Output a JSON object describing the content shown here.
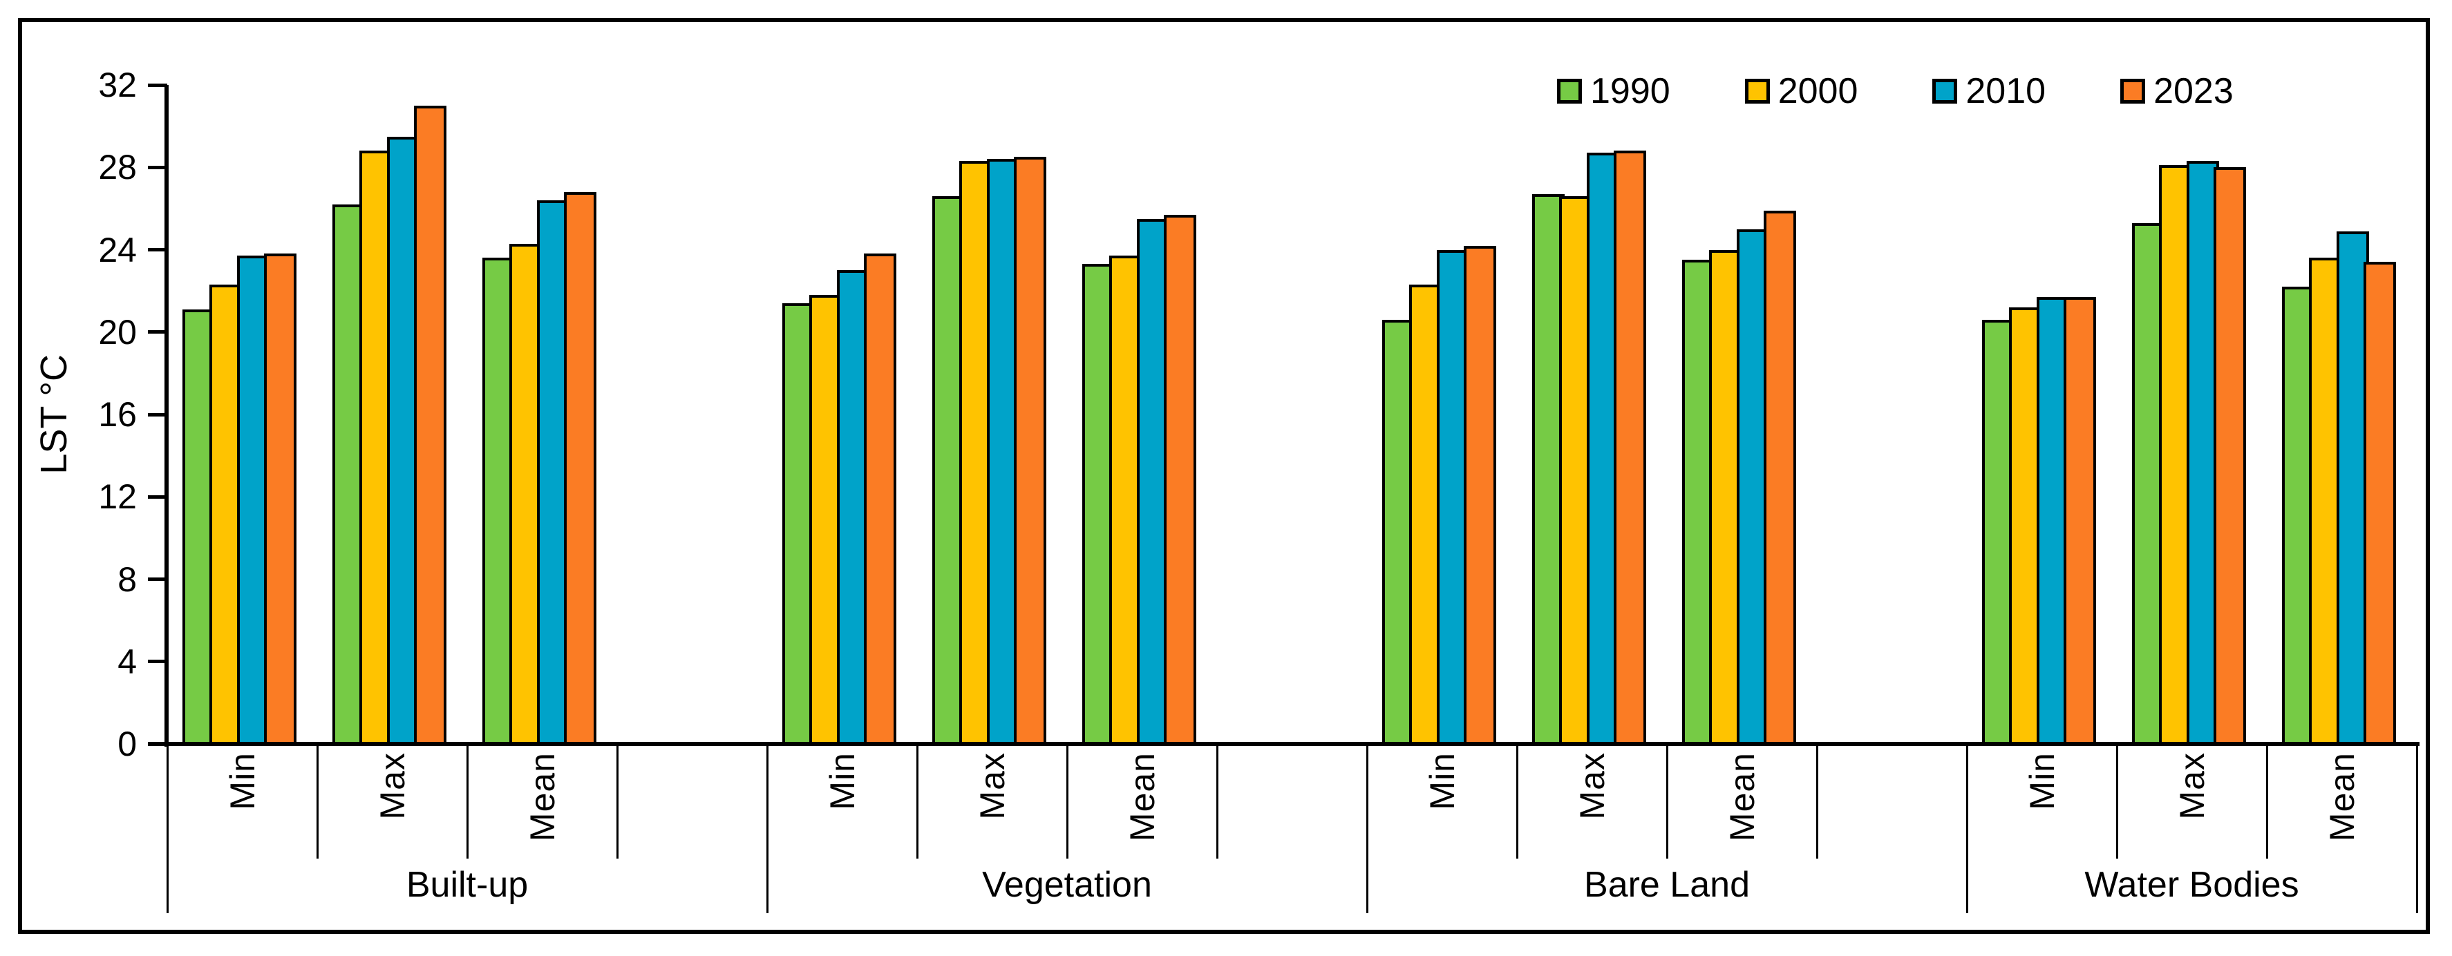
{
  "legend": {
    "items": [
      {
        "label": "1990",
        "color": "#76CB45"
      },
      {
        "label": "2000",
        "color": "#FFC300"
      },
      {
        "label": "2010",
        "color": "#00A3C9"
      },
      {
        "label": "2023",
        "color": "#FB7C24"
      }
    ]
  },
  "chart_data": {
    "type": "bar",
    "title": "",
    "xlabel": "",
    "ylabel": "LST °C",
    "y_axis": {
      "label": "LST °C",
      "min": 0,
      "max": 32,
      "tick_step": 4,
      "ticks": [
        0,
        4,
        8,
        12,
        16,
        20,
        24,
        28,
        32
      ]
    },
    "legend_position": "top-right",
    "grid": false,
    "stat_labels": [
      "Min",
      "Max",
      "Mean"
    ],
    "series_names": [
      "1990",
      "2000",
      "2010",
      "2023"
    ],
    "series_colors": [
      "#76CB45",
      "#FFC300",
      "#00A3C9",
      "#FB7C24"
    ],
    "groups": [
      {
        "label": "Built-up",
        "min": [
          21.1,
          22.3,
          23.7,
          23.8
        ],
        "max": [
          26.2,
          28.8,
          29.5,
          31.0
        ],
        "mean": [
          23.6,
          24.3,
          26.4,
          26.8
        ]
      },
      {
        "label": "Vegetation",
        "min": [
          21.4,
          21.8,
          23.0,
          23.8
        ],
        "max": [
          26.6,
          28.3,
          28.4,
          28.5
        ],
        "mean": [
          23.3,
          23.7,
          25.5,
          25.7
        ]
      },
      {
        "label": "Bare Land",
        "min": [
          20.6,
          22.3,
          24.0,
          24.2
        ],
        "max": [
          26.7,
          26.6,
          28.7,
          28.8
        ],
        "mean": [
          23.5,
          24.0,
          25.0,
          25.9
        ]
      },
      {
        "label": "Water Bodies",
        "min": [
          20.6,
          21.2,
          21.7,
          21.7
        ],
        "max": [
          25.3,
          28.1,
          28.3,
          28.0
        ],
        "mean": [
          22.2,
          23.6,
          24.9,
          23.4
        ]
      }
    ]
  }
}
